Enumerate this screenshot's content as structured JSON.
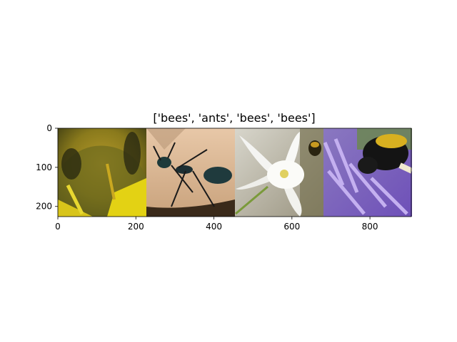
{
  "chart_data": {
    "type": "image",
    "title": "['bees', 'ants', 'bees', 'bees']",
    "xlim": [
      0,
      906
    ],
    "ylim": [
      226,
      0
    ],
    "x_ticks": [
      0,
      200,
      400,
      600,
      800
    ],
    "x_tick_labels": [
      "0",
      "200",
      "400",
      "600",
      "800"
    ],
    "y_ticks": [
      0,
      100,
      200
    ],
    "y_tick_labels": [
      "0",
      "100",
      "200"
    ],
    "tiles": [
      {
        "label": "bees",
        "x_range": [
          0,
          226
        ],
        "subject": "bee-closeup-on-yellow-flower"
      },
      {
        "label": "ants",
        "x_range": [
          226,
          452
        ],
        "subject": "black-ant-on-leaf"
      },
      {
        "label": "bees",
        "x_range": [
          452,
          678
        ],
        "subject": "bee-on-white-columbine-flower"
      },
      {
        "label": "bees",
        "x_range": [
          678,
          904
        ],
        "subject": "bumblebee-on-purple-flower"
      }
    ]
  }
}
